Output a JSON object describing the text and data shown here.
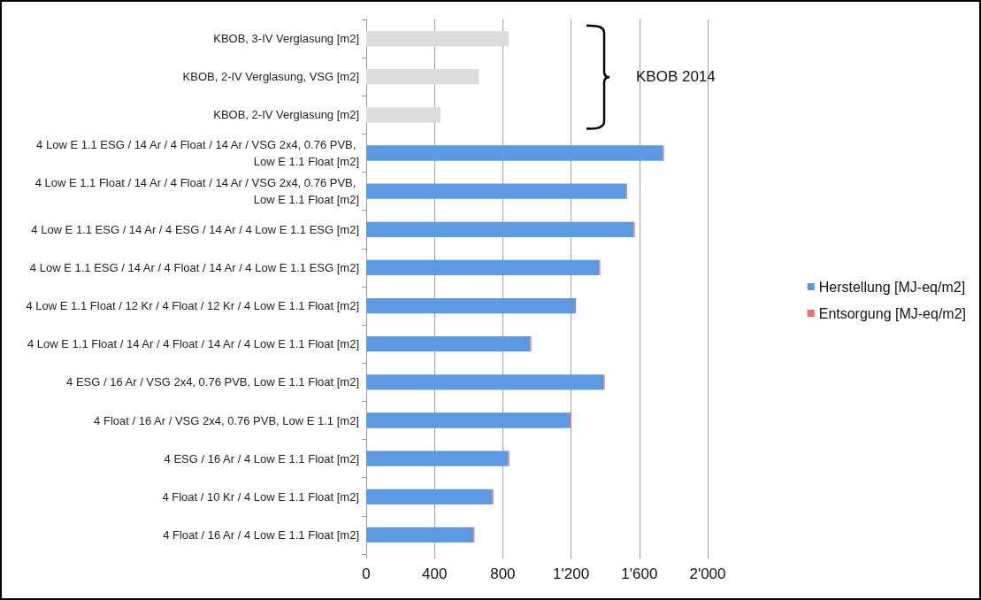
{
  "chart_data": {
    "type": "bar",
    "orientation": "horizontal",
    "stacked": true,
    "categories": [
      "KBOB, 3-IV Verglasung [m2]",
      "KBOB, 2-IV Verglasung, VSG [m2]",
      "KBOB, 2-IV Verglasung [m2]",
      "4 Low E 1.1 ESG / 14 Ar / 4 Float / 14 Ar / VSG 2x4, 0.76 PVB, Low E 1.1 Float [m2]",
      "4 Low E 1.1 Float / 14 Ar / 4 Float / 14 Ar / VSG 2x4, 0.76 PVB, Low E 1.1 Float [m2]",
      "4 Low E 1.1 ESG / 14 Ar / 4 ESG / 14 Ar / 4 Low E 1.1 ESG [m2]",
      "4 Low E 1.1 ESG / 14 Ar / 4 Float / 14 Ar / 4 Low E 1.1 ESG [m2]",
      "4 Low E 1.1 Float / 12 Kr / 4 Float / 12 Kr / 4 Low E 1.1 Float [m2]",
      "4 Low E 1.1 Float / 14 Ar / 4 Float / 14 Ar / 4 Low E 1.1 Float [m2]",
      "4 ESG / 16 Ar / VSG 2x4, 0.76 PVB, Low E 1.1 Float [m2]",
      "4 Float / 16 Ar / VSG 2x4, 0.76 PVB, Low E 1.1 [m2]",
      "4 ESG / 16 Ar / 4 Low E 1.1 Float [m2]",
      "4 Float / 10 Kr / 4 Low E 1.1 Float [m2]",
      "4 Float / 16 Ar / 4 Low E 1.1 Float [m2]"
    ],
    "series": [
      {
        "color": "#dcdcdc",
        "values": [
          835,
          660,
          435,
          null,
          null,
          null,
          null,
          null,
          null,
          null,
          null,
          null,
          null,
          null
        ]
      },
      {
        "name": "Herstellung [MJ-eq/m2]",
        "color": "#5b9ae0",
        "values": [
          null,
          null,
          null,
          1738,
          1522,
          1567,
          1365,
          1223,
          961,
          1391,
          1192,
          832,
          739,
          628
        ]
      },
      {
        "name": "Entsorgung [MJ-eq/m2]",
        "color": "#e87070",
        "values": [
          null,
          null,
          null,
          6,
          6,
          6,
          6,
          6,
          6,
          6,
          6,
          6,
          6,
          6
        ]
      }
    ],
    "xlim": [
      0,
      2000
    ],
    "xticks": [
      0,
      400,
      800,
      {
        "value": 1200,
        "label": "1'200"
      },
      {
        "value": 1600,
        "label": "1'600"
      },
      {
        "value": 2000,
        "label": "2'000"
      }
    ],
    "grid": "x",
    "legend": "right",
    "annotations": [
      "KBOB 2014"
    ]
  }
}
